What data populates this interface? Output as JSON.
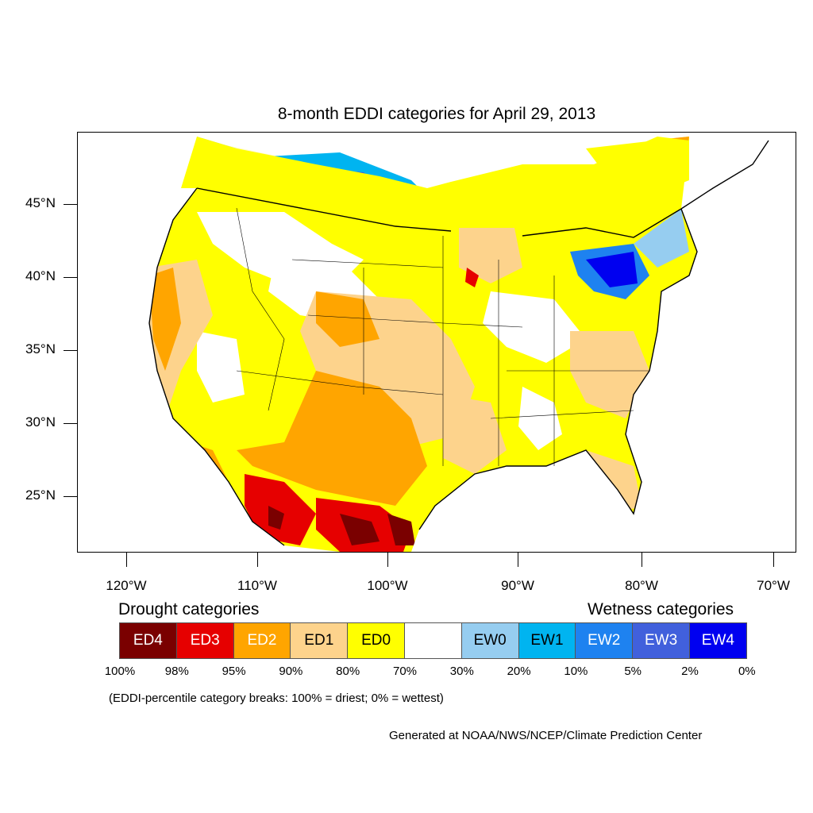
{
  "title": "8-month EDDI categories for April 29, 2013",
  "lat_ticks": [
    "45°N",
    "40°N",
    "35°N",
    "30°N",
    "25°N"
  ],
  "lon_ticks": [
    "120°W",
    "110°W",
    "100°W",
    "90°W",
    "80°W",
    "70°W"
  ],
  "legend": {
    "drought_heading": "Drought categories",
    "wetness_heading": "Wetness categories",
    "categories": [
      {
        "label": "ED4",
        "color": "#7a0000",
        "text_color": "#ffffff"
      },
      {
        "label": "ED3",
        "color": "#e60000",
        "text_color": "#ffffff"
      },
      {
        "label": "ED2",
        "color": "#ffa500",
        "text_color": "#ffffff"
      },
      {
        "label": "ED1",
        "color": "#fdd38c",
        "text_color": "#000000"
      },
      {
        "label": "ED0",
        "color": "#ffff00",
        "text_color": "#000000"
      },
      {
        "label": "",
        "color": "#ffffff",
        "text_color": "#000000"
      },
      {
        "label": "EW0",
        "color": "#96cdf0",
        "text_color": "#000000"
      },
      {
        "label": "EW1",
        "color": "#00b4f0",
        "text_color": "#000000"
      },
      {
        "label": "EW2",
        "color": "#1e82f0",
        "text_color": "#ffffff"
      },
      {
        "label": "EW3",
        "color": "#4160dc",
        "text_color": "#ffffff"
      },
      {
        "label": "EW4",
        "color": "#0000f0",
        "text_color": "#ffffff"
      }
    ],
    "breaks": [
      "100%",
      "98%",
      "95%",
      "90%",
      "80%",
      "70%",
      "30%",
      "20%",
      "10%",
      "5%",
      "2%",
      "0%"
    ]
  },
  "note": "(EDDI-percentile category breaks: 100% = driest; 0% = wettest)",
  "credit": "Generated at NOAA/NWS/NCEP/Climate Prediction Center"
}
